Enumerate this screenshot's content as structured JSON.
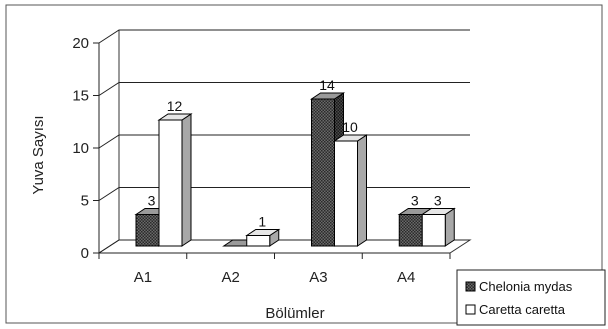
{
  "chart_data": {
    "type": "bar",
    "title": "",
    "xlabel": "Bölümler",
    "ylabel": "Yuva Sayısı",
    "categories": [
      "A1",
      "A2",
      "A3",
      "A4"
    ],
    "series": [
      {
        "name": "Chelonia mydas",
        "values": [
          3,
          0,
          14,
          3
        ],
        "labels": [
          "3",
          "",
          "14",
          "3"
        ]
      },
      {
        "name": "Caretta caretta",
        "values": [
          12,
          1,
          10,
          3
        ],
        "labels": [
          "12",
          "1",
          "10",
          "3"
        ]
      }
    ],
    "ylim": [
      0,
      20
    ],
    "yticks": [
      0,
      5,
      10,
      15,
      20
    ],
    "grid": true,
    "legend": "bottom-right",
    "colors": {
      "Chelonia mydas": "#555555",
      "Caretta caretta": "#ffffff",
      "outline": "#000000"
    }
  }
}
